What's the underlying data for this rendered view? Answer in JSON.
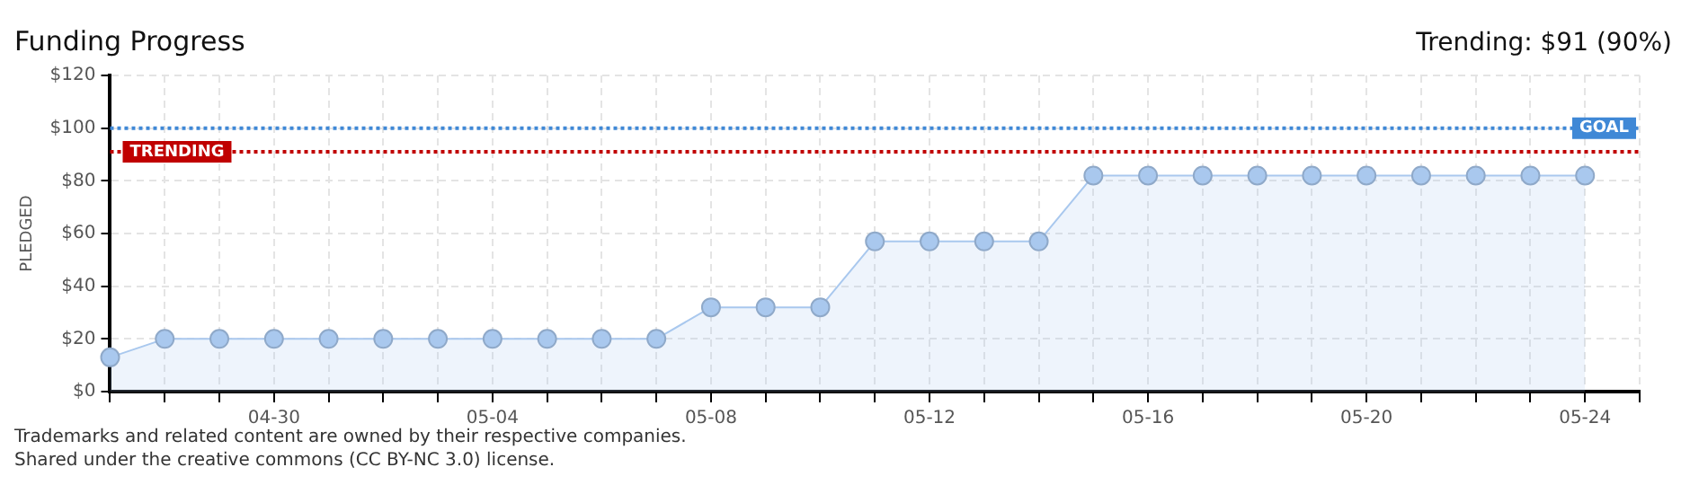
{
  "chart_data": {
    "type": "area",
    "title": "Funding Progress",
    "subtitle": "Trending: $91 (90%)",
    "ylabel": "PLEDGED",
    "categories": [
      null,
      null,
      null,
      "04-30",
      null,
      null,
      null,
      "05-04",
      null,
      null,
      null,
      "05-08",
      null,
      null,
      null,
      "05-12",
      null,
      null,
      null,
      "05-16",
      null,
      null,
      null,
      "05-20",
      null,
      null,
      null,
      "05-24",
      null
    ],
    "series": [
      {
        "color": "#a9c8ee",
        "values": [
          13,
          20,
          20,
          20,
          20,
          20,
          20,
          20,
          20,
          20,
          20,
          32,
          32,
          32,
          57,
          57,
          57,
          57,
          82,
          82,
          82,
          82,
          82,
          82,
          82,
          82,
          82,
          82,
          null
        ]
      }
    ],
    "ylim": [
      0,
      120
    ],
    "yticks": [
      {
        "value": 0,
        "label": "$0"
      },
      {
        "value": 20,
        "label": "$20"
      },
      {
        "value": 40,
        "label": "$40"
      },
      {
        "value": 60,
        "label": "$60"
      },
      {
        "value": 80,
        "label": "$80"
      },
      {
        "value": 100,
        "label": "$100"
      },
      {
        "value": 120,
        "label": "$120"
      }
    ],
    "ref_lines": [
      {
        "axis": "y",
        "value": 100,
        "label": "GOAL",
        "color": "#3f88d6",
        "line_style": "dotted"
      },
      {
        "axis": "y",
        "value": 91,
        "label": "TRENDING",
        "color": "#c00000",
        "line_style": "dotted"
      }
    ],
    "grid": true,
    "marker": "circle",
    "legend": false,
    "annotations": [
      "Trademarks and related content are owned by their respective companies.",
      "Shared under the creative commons (CC BY-NC 3.0) license."
    ]
  }
}
